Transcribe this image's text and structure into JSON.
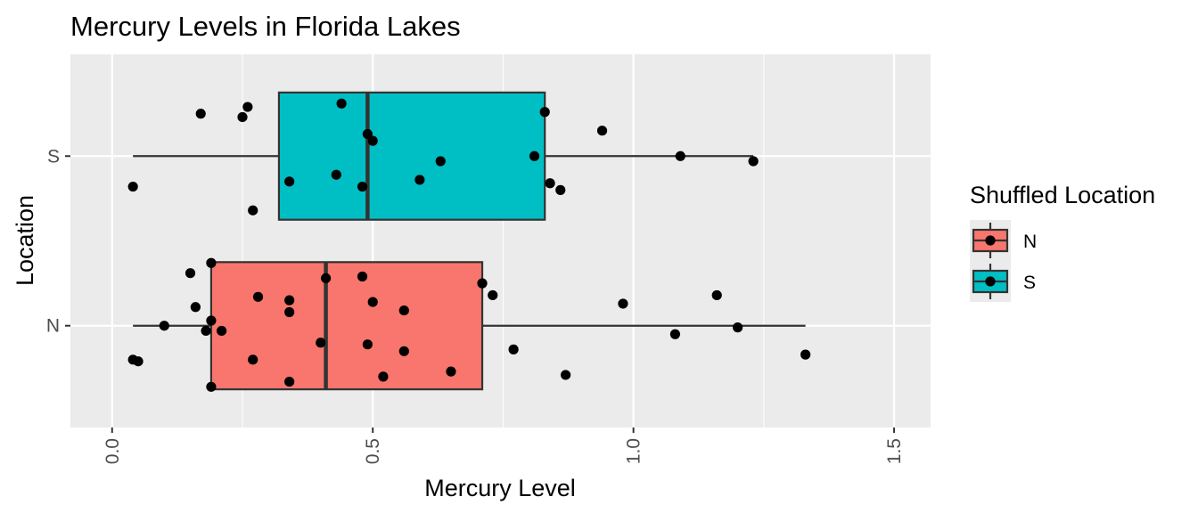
{
  "chart_data": {
    "type": "box",
    "title": "Mercury Levels in Florida Lakes",
    "xlabel": "Mercury Level",
    "ylabel": "Location",
    "xlim": [
      -0.08,
      1.57
    ],
    "x_ticks": [
      0.0,
      0.5,
      1.0,
      1.5
    ],
    "x_tick_labels": [
      "0.0",
      "0.5",
      "1.0",
      "1.5"
    ],
    "categories": [
      "N",
      "S"
    ],
    "grid": true,
    "legend": {
      "title": "Shuffled Location",
      "position": "right",
      "entries": [
        {
          "label": "N",
          "color": "#F8766D"
        },
        {
          "label": "S",
          "color": "#00BFC4"
        }
      ]
    },
    "boxes": [
      {
        "category": "N",
        "fill": "#F8766D",
        "whisker_low": 0.04,
        "q1": 0.19,
        "median": 0.41,
        "q3": 0.71,
        "whisker_high": 1.33
      },
      {
        "category": "S",
        "fill": "#00BFC4",
        "whisker_low": 0.04,
        "q1": 0.32,
        "median": 0.49,
        "q3": 0.83,
        "whisker_high": 1.23
      }
    ],
    "points": [
      {
        "category": "S",
        "x": 0.17,
        "jitter": 0.25
      },
      {
        "category": "S",
        "x": 0.25,
        "jitter": 0.23
      },
      {
        "category": "S",
        "x": 0.26,
        "jitter": 0.29
      },
      {
        "category": "S",
        "x": 0.44,
        "jitter": 0.31
      },
      {
        "category": "S",
        "x": 0.83,
        "jitter": 0.26
      },
      {
        "category": "S",
        "x": 0.94,
        "jitter": 0.15
      },
      {
        "category": "S",
        "x": 0.49,
        "jitter": 0.13
      },
      {
        "category": "S",
        "x": 0.5,
        "jitter": 0.09
      },
      {
        "category": "S",
        "x": 0.81,
        "jitter": 0.0
      },
      {
        "category": "S",
        "x": 1.09,
        "jitter": 0.0
      },
      {
        "category": "S",
        "x": 1.23,
        "jitter": -0.03
      },
      {
        "category": "S",
        "x": 0.63,
        "jitter": -0.03
      },
      {
        "category": "S",
        "x": 0.43,
        "jitter": -0.11
      },
      {
        "category": "S",
        "x": 0.34,
        "jitter": -0.15
      },
      {
        "category": "S",
        "x": 0.48,
        "jitter": -0.18
      },
      {
        "category": "S",
        "x": 0.59,
        "jitter": -0.14
      },
      {
        "category": "S",
        "x": 0.84,
        "jitter": -0.16
      },
      {
        "category": "S",
        "x": 0.86,
        "jitter": -0.2
      },
      {
        "category": "S",
        "x": 0.04,
        "jitter": -0.18
      },
      {
        "category": "S",
        "x": 0.27,
        "jitter": -0.32
      },
      {
        "category": "N",
        "x": 0.19,
        "jitter": 0.37
      },
      {
        "category": "N",
        "x": 0.15,
        "jitter": 0.31
      },
      {
        "category": "N",
        "x": 0.41,
        "jitter": 0.28
      },
      {
        "category": "N",
        "x": 0.48,
        "jitter": 0.29
      },
      {
        "category": "N",
        "x": 0.71,
        "jitter": 0.25
      },
      {
        "category": "N",
        "x": 0.73,
        "jitter": 0.18
      },
      {
        "category": "N",
        "x": 1.16,
        "jitter": 0.18
      },
      {
        "category": "N",
        "x": 0.28,
        "jitter": 0.17
      },
      {
        "category": "N",
        "x": 0.34,
        "jitter": 0.15
      },
      {
        "category": "N",
        "x": 0.5,
        "jitter": 0.14
      },
      {
        "category": "N",
        "x": 0.16,
        "jitter": 0.11
      },
      {
        "category": "N",
        "x": 0.34,
        "jitter": 0.08
      },
      {
        "category": "N",
        "x": 0.56,
        "jitter": 0.09
      },
      {
        "category": "N",
        "x": 0.98,
        "jitter": 0.13
      },
      {
        "category": "N",
        "x": 0.19,
        "jitter": 0.03
      },
      {
        "category": "N",
        "x": 0.1,
        "jitter": 0.0
      },
      {
        "category": "N",
        "x": 0.18,
        "jitter": -0.03
      },
      {
        "category": "N",
        "x": 0.21,
        "jitter": -0.03
      },
      {
        "category": "N",
        "x": 1.2,
        "jitter": -0.01
      },
      {
        "category": "N",
        "x": 1.08,
        "jitter": -0.05
      },
      {
        "category": "N",
        "x": 0.4,
        "jitter": -0.1
      },
      {
        "category": "N",
        "x": 0.49,
        "jitter": -0.11
      },
      {
        "category": "N",
        "x": 0.56,
        "jitter": -0.15
      },
      {
        "category": "N",
        "x": 0.77,
        "jitter": -0.14
      },
      {
        "category": "N",
        "x": 1.33,
        "jitter": -0.17
      },
      {
        "category": "N",
        "x": 0.04,
        "jitter": -0.2
      },
      {
        "category": "N",
        "x": 0.05,
        "jitter": -0.21
      },
      {
        "category": "N",
        "x": 0.27,
        "jitter": -0.2
      },
      {
        "category": "N",
        "x": 0.65,
        "jitter": -0.27
      },
      {
        "category": "N",
        "x": 0.52,
        "jitter": -0.3
      },
      {
        "category": "N",
        "x": 0.87,
        "jitter": -0.29
      },
      {
        "category": "N",
        "x": 0.34,
        "jitter": -0.33
      },
      {
        "category": "N",
        "x": 0.19,
        "jitter": -0.36
      }
    ]
  }
}
